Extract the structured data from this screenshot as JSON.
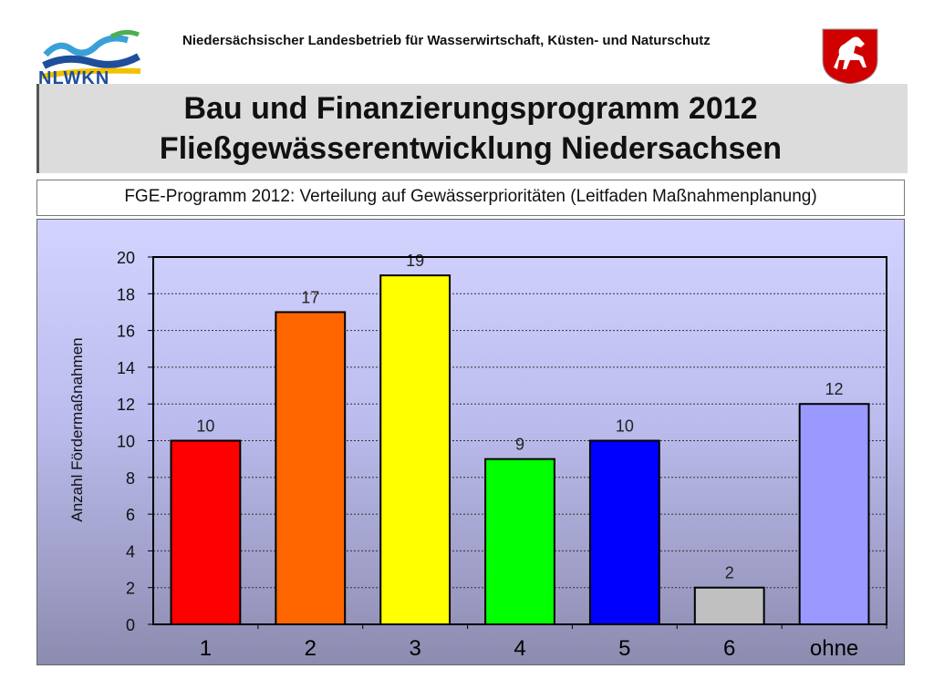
{
  "header": {
    "organization": "Niedersächsischer Landesbetrieb für Wasserwirtschaft, Küsten- und Naturschutz",
    "logo_text": "NLWKN"
  },
  "slide": {
    "title_line1": "Bau und Finanzierungsprogramm 2012",
    "title_line2": "Fließgewässerentwicklung Niedersachsen",
    "subtitle": "FGE-Programm 2012: Verteilung auf Gewässerprioritäten (Leitfaden Maßnahmenplanung)"
  },
  "chart_data": {
    "type": "bar",
    "title": "",
    "xlabel": "",
    "ylabel": "Anzahl Fördermaßnahmen",
    "categories": [
      "1",
      "2",
      "3",
      "4",
      "5",
      "6",
      "ohne"
    ],
    "values": [
      10,
      17,
      19,
      9,
      10,
      2,
      12
    ],
    "data_labels": [
      "10",
      "17",
      "19",
      "9",
      "10",
      "2",
      "12"
    ],
    "colors": [
      "#ff0000",
      "#ff6600",
      "#ffff00",
      "#00ff00",
      "#0000ff",
      "#c0c0c0",
      "#9999ff"
    ],
    "ylim": [
      0,
      20
    ],
    "yticks": [
      0,
      2,
      4,
      6,
      8,
      10,
      12,
      14,
      16,
      18,
      20
    ],
    "grid": true,
    "legend": "none"
  }
}
